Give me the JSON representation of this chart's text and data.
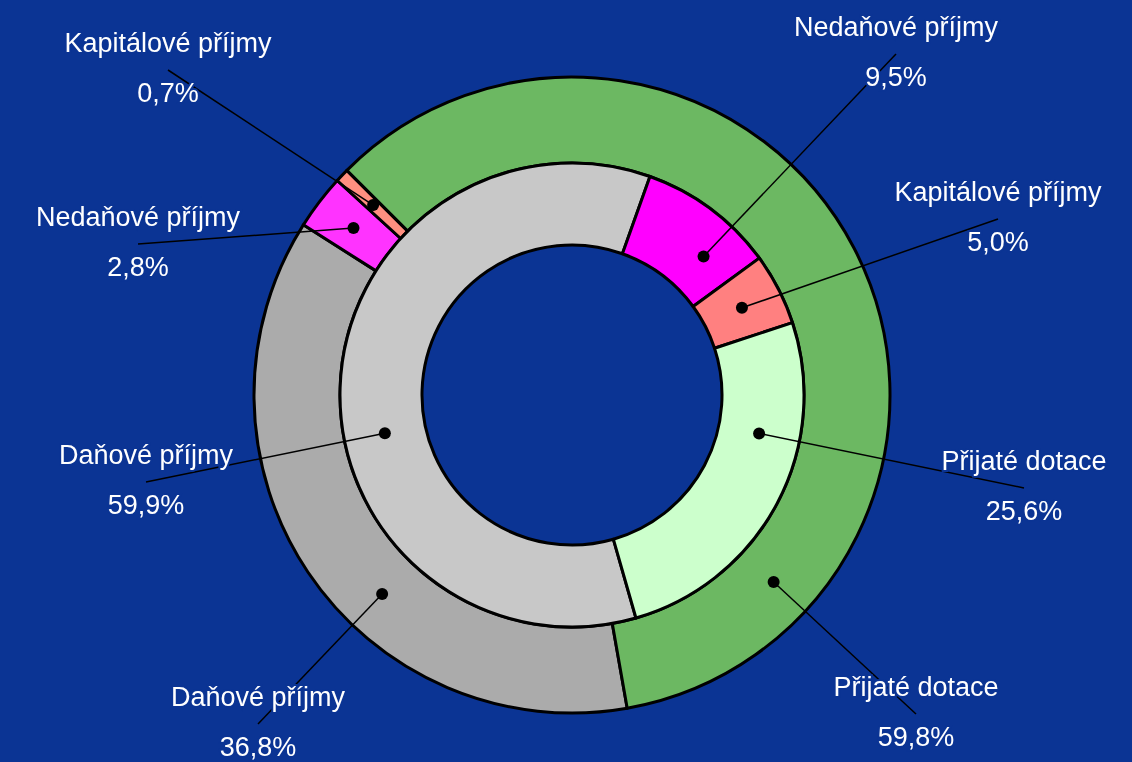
{
  "chart_data": {
    "type": "donut",
    "categories": [
      "Daňové příjmy",
      "Nedaňové příjmy",
      "Kapitálové příjmy",
      "Přijaté dotace"
    ],
    "series": [
      {
        "values": [
          36.8,
          2.8,
          0.7,
          59.8
        ],
        "colors": [
          "#ababab",
          "#ff33ff",
          "#ff8f80",
          "#6cb862"
        ],
        "value_labels": [
          "36,8%",
          "2,8%",
          "0,7%",
          "59,8%"
        ]
      },
      {
        "values": [
          59.9,
          9.5,
          5.0,
          25.6
        ],
        "colors": [
          "#c8c8c8",
          "#ff00ff",
          "#ff8080",
          "#ccffcc"
        ],
        "value_labels": [
          "59,9%",
          "9,5%",
          "5,0%",
          "25,6%"
        ]
      }
    ]
  }
}
